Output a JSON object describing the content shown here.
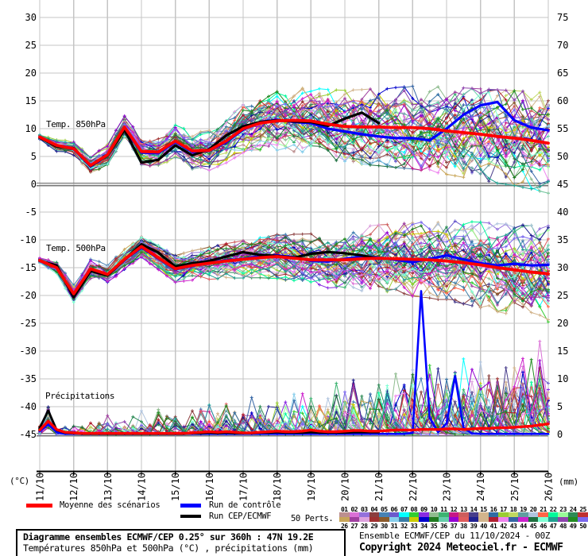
{
  "chart_data": {
    "type": "line",
    "title": "Diagramme ensembles ECMWF/CEP 0.25° sur 360h : 47N 19.2E",
    "x_axis": {
      "dates": [
        "11/10",
        "12/10",
        "13/10",
        "14/10",
        "15/10",
        "16/10",
        "17/10",
        "18/10",
        "19/10",
        "20/10",
        "21/10",
        "22/10",
        "23/10",
        "24/10",
        "25/10",
        "26/10"
      ],
      "hours_total": 360,
      "label_left": "(°C)",
      "label_right": "(mm)"
    },
    "y_left": {
      "min": -45,
      "max": 30,
      "ticks": [
        30,
        25,
        20,
        15,
        10,
        5,
        0,
        -5,
        -10,
        -15,
        -20,
        -25,
        -30,
        -35,
        -40,
        -45
      ]
    },
    "y_right": {
      "min": 0,
      "max": 75,
      "ticks": [
        75,
        70,
        65,
        60,
        55,
        50,
        45,
        40,
        35,
        30,
        25,
        20,
        15,
        10,
        5,
        0
      ]
    },
    "panels": [
      {
        "id": "t850",
        "label": "Temp. 850hPa"
      },
      {
        "id": "t500",
        "label": "Temp. 500hPa"
      },
      {
        "id": "precip",
        "label": "Précipitations"
      }
    ],
    "grid": {
      "color": "#c4c4c4",
      "zero_line_color": "#787878"
    },
    "series": {
      "mean850": {
        "step_h": 12,
        "color": "#ff0000",
        "values": [
          8.5,
          7.0,
          6.4,
          3.4,
          5.3,
          10.3,
          5.9,
          5.8,
          7.8,
          6.0,
          6.1,
          7.8,
          10.0,
          11.0,
          11.4,
          11.5,
          11.4,
          10.8,
          10.4,
          10.3,
          10.3,
          10.2,
          10.2,
          10.0,
          9.6,
          9.3,
          9.0,
          8.6,
          8.3,
          7.9,
          7.4
        ]
      },
      "ctrl850": {
        "step_h": 12,
        "color": "#0000ff",
        "values": [
          8.5,
          7.0,
          6.3,
          3.2,
          5.2,
          10.1,
          5.7,
          5.6,
          7.6,
          5.8,
          6.0,
          7.6,
          9.8,
          11.2,
          11.6,
          11.2,
          11.0,
          10.0,
          9.5,
          9.0,
          8.6,
          8.3,
          8.3,
          7.9,
          10.0,
          12.5,
          14.2,
          14.8,
          11.5,
          10.2,
          9.7
        ]
      },
      "hres850": {
        "step_h": 12,
        "color": "#000000",
        "values": [
          8.4,
          6.8,
          6.5,
          3.3,
          5.2,
          9.8,
          3.9,
          4.4,
          7.0,
          5.2,
          6.3,
          8.8,
          10.4,
          11.2,
          11.5,
          11.3,
          11.2,
          10.5,
          11.8,
          12.9,
          11.0
        ]
      },
      "mean500": {
        "step_h": 12,
        "color": "#ff0000",
        "values": [
          -13.7,
          -15.0,
          -19.7,
          -15.2,
          -16.2,
          -13.5,
          -11.2,
          -13.2,
          -15.2,
          -14.6,
          -14.2,
          -13.8,
          -13.5,
          -13.2,
          -13.0,
          -13.3,
          -13.6,
          -13.6,
          -13.6,
          -13.4,
          -13.3,
          -13.4,
          -13.5,
          -13.6,
          -13.8,
          -14.1,
          -14.5,
          -15.0,
          -15.4,
          -15.8,
          -16.1
        ]
      },
      "ctrl500": {
        "step_h": 12,
        "color": "#0000ff",
        "values": [
          -13.7,
          -15.0,
          -19.8,
          -15.3,
          -16.3,
          -13.6,
          -11.4,
          -13.3,
          -15.3,
          -14.7,
          -14.1,
          -13.7,
          -13.4,
          -13.0,
          -12.8,
          -13.1,
          -13.8,
          -13.9,
          -13.4,
          -13.0,
          -13.2,
          -13.6,
          -14.0,
          -13.4,
          -12.8,
          -13.5,
          -14.2,
          -14.6,
          -14.3,
          -14.6,
          -14.5
        ]
      },
      "hres500": {
        "step_h": 12,
        "color": "#000000",
        "values": [
          -13.8,
          -14.6,
          -20.3,
          -15.6,
          -16.4,
          -13.6,
          -10.8,
          -12.3,
          -14.8,
          -14.2,
          -13.8,
          -13.0,
          -12.2,
          -12.7,
          -12.9,
          -13.2,
          -12.5,
          -12.2,
          -12.4,
          -12.8,
          -13.4
        ]
      },
      "meanPrecip": {
        "step_h": 6,
        "color": "#ff0000",
        "values": [
          0.8,
          2.4,
          0.9,
          0.4,
          0.3,
          0.2,
          0.2,
          0.2,
          0.2,
          0.2,
          0.2,
          0.2,
          0.2,
          0.2,
          0.2,
          0.2,
          0.2,
          0.2,
          0.3,
          0.4,
          0.5,
          0.4,
          0.5,
          0.4,
          0.3,
          0.3,
          0.4,
          0.5,
          0.6,
          0.5,
          0.5,
          0.6,
          0.8,
          0.6,
          0.5,
          0.5,
          0.6,
          0.7,
          0.7,
          0.6,
          0.6,
          0.7,
          0.8,
          0.8,
          0.8,
          0.9,
          0.9,
          0.9,
          1.0,
          1.0,
          0.9,
          1.0,
          1.1,
          1.1,
          1.2,
          1.2,
          1.3,
          1.4,
          1.5,
          1.7,
          1.9
        ]
      },
      "ctrlPrecip": {
        "step_h": 6,
        "color": "#0000ff",
        "values": [
          0.6,
          1.8,
          0.4,
          0.1,
          0.1,
          0.1,
          0.1,
          0.1,
          0.1,
          0.1,
          0.1,
          0.1,
          0.1,
          0.1,
          0.1,
          0.1,
          0.1,
          0.1,
          0.1,
          0.1,
          0.1,
          0.1,
          0.1,
          0.1,
          0.1,
          0.1,
          0.1,
          0.1,
          0.1,
          0.1,
          0.1,
          0.1,
          0.1,
          0.1,
          0.1,
          0.1,
          0.1,
          0.1,
          0.1,
          0.1,
          0.1,
          0.1,
          0.1,
          0.1,
          0.3,
          25.8,
          3.0,
          0.4,
          2.0,
          10.5,
          1.2,
          0.2,
          0.1,
          0.1,
          0.1,
          0.1,
          0.1,
          0.1,
          0.1,
          0.1,
          0.1
        ]
      },
      "hresPrecip": {
        "step_h": 6,
        "color": "#000000",
        "values": [
          1.2,
          4.3,
          0.8,
          0.3,
          0.2,
          0.1,
          0.1,
          0.1,
          0.1,
          0.1,
          0.1,
          0.1,
          0.1,
          0.1,
          0.1,
          0.1,
          0.1,
          0.1,
          0.2,
          0.2,
          0.3,
          0.2,
          0.3,
          0.2,
          0.2,
          0.2,
          0.3,
          0.3,
          0.4,
          0.3,
          0.3,
          0.3,
          0.4,
          0.3,
          0.3,
          0.3,
          0.3,
          0.4,
          0.4,
          0.4,
          0.4
        ]
      }
    },
    "ensemble": {
      "members": 50,
      "seed": 42,
      "spread850": [
        0.7,
        0.9,
        1.1,
        1.3,
        1.5,
        1.7,
        2.0,
        2.2,
        2.5,
        2.7,
        3.0,
        3.3,
        3.6,
        4.0,
        4.4,
        4.7,
        5.0,
        5.2,
        5.4,
        5.6,
        5.8,
        6.0,
        6.2,
        6.4,
        6.5,
        6.7,
        6.8,
        7.0,
        7.1,
        7.3,
        7.5
      ],
      "spread500": [
        0.8,
        1.0,
        1.3,
        1.5,
        1.5,
        1.5,
        1.6,
        1.8,
        2.0,
        2.2,
        2.4,
        2.6,
        2.8,
        3.0,
        3.3,
        3.6,
        3.9,
        4.2,
        4.5,
        4.8,
        5.0,
        5.2,
        5.5,
        5.7,
        6.0,
        6.2,
        6.4,
        6.6,
        6.8,
        7.0,
        7.2
      ]
    }
  },
  "legend": {
    "mean_label": "Moyenne des scénarios",
    "control_label": "Run de contrôle",
    "hres_label": "Run CEP/ECMWF",
    "perts_label": "50 Perts.",
    "mean_color": "#ff0000",
    "control_color": "#0000ff",
    "hres_color": "#000000"
  },
  "perts": {
    "numbers_top": [
      "01",
      "02",
      "03",
      "04",
      "05",
      "06",
      "07",
      "08",
      "09",
      "10",
      "11",
      "12",
      "13",
      "14",
      "15",
      "16",
      "17",
      "18",
      "19",
      "20",
      "21",
      "22",
      "23",
      "24",
      "25"
    ],
    "numbers_bottom": [
      "26",
      "27",
      "28",
      "29",
      "30",
      "31",
      "32",
      "33",
      "34",
      "35",
      "36",
      "37",
      "38",
      "39",
      "40",
      "41",
      "42",
      "43",
      "44",
      "45",
      "46",
      "47",
      "48",
      "49",
      "50"
    ],
    "palette": [
      "#bc8f8f",
      "#da70d6",
      "#9370db",
      "#8b3e3e",
      "#4682b4",
      "#6a5acd",
      "#00ffff",
      "#32cd32",
      "#8a2be2",
      "#8fbc8f",
      "#3cb371",
      "#c71585",
      "#cd5c5c",
      "#483d8b",
      "#d2b48c",
      "#2e6da4",
      "#9acd32",
      "#c0d860",
      "#5f9ea0",
      "#b0c4de",
      "#ff6347",
      "#00fa9a",
      "#98fb98",
      "#2e8b57",
      "#c03030",
      "#c8a558",
      "#a040a0",
      "#dda0dd",
      "#a03030",
      "#8b5a2b",
      "#87ceeb",
      "#3a7ca5",
      "#cccc00",
      "#0000cd",
      "#1f7a1f",
      "#66cdaa",
      "#9400d3",
      "#e05c5c",
      "#202090",
      "#d2b48c",
      "#b02030",
      "#ee82ee",
      "#3465a4",
      "#cc22cc",
      "#1e7040",
      "#7fffd4",
      "#20a090",
      "#8e44ad",
      "#228b22",
      "#7b68ee"
    ]
  },
  "footer": {
    "box_line1": "Diagramme ensembles ECMWF/CEP 0.25° sur 360h : 47N 19.2E",
    "box_line2": "Températures 850hPa et 500hPa (°C) , précipitations (mm)",
    "right_line1": "Ensemble ECMWF/CEP du 11/10/2024 - 00Z",
    "right_line2": "Copyright 2024 Meteociel.fr - ECMWF"
  }
}
